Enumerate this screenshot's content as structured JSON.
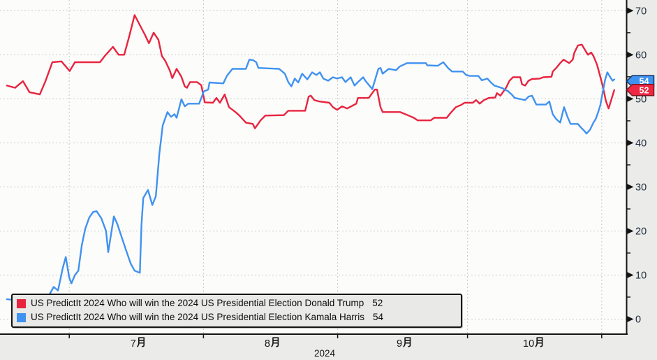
{
  "legend": {
    "rows": [
      {
        "label": "US PredictIt 2024 Who will win the 2024 US Presidential Election Donald Trump",
        "value": "52"
      },
      {
        "label": "US PredictIt 2024 Who will win the 2024 US Presidential Election Kamala Harris",
        "value": "54"
      }
    ]
  },
  "colors": {
    "trump_line": "#e8243f",
    "harris_line": "#4092f0",
    "gridline": "#c9c9c7",
    "axis": "#141414",
    "tick_label": "#1d2b3a",
    "plot_background": "#fcfcfb",
    "margin_background": "#ebebe9",
    "legend_background": "#e9e9e7"
  },
  "chart_data": {
    "type": "line",
    "title": "",
    "x_unit": "days_since_2024-06-15",
    "x_start_date": "2024-06-15",
    "x_ticks": [
      {
        "day": 16,
        "date": "2024-07-01"
      },
      {
        "day": 47,
        "date": "2024-08-01"
      },
      {
        "day": 78,
        "date": "2024-09-01"
      },
      {
        "day": 108,
        "date": "2024-10-01"
      },
      {
        "day": 139,
        "date": "2024-11-01"
      }
    ],
    "x_month_labels": [
      {
        "label": "7月",
        "center_day": 31.5
      },
      {
        "label": "8月",
        "center_day": 62.5
      },
      {
        "label": "9月",
        "center_day": 93
      },
      {
        "label": "10月",
        "center_day": 123.5
      }
    ],
    "year_label": "2024",
    "ylim": [
      0,
      70
    ],
    "y_major_ticks": [
      0,
      10,
      20,
      30,
      40,
      50,
      60,
      70
    ],
    "y_minor_ticks": [
      5,
      15,
      25,
      35,
      45,
      55,
      65
    ],
    "grid": true,
    "legend_position": "bottom-left",
    "series": [
      {
        "name": "Donald Trump",
        "slug": "trump",
        "color": "#e8243f",
        "badge_fill": "#ee2742",
        "badge_stroke": "#7d1524",
        "last_value": 52,
        "points": [
          [
            1.6,
            53
          ],
          [
            3.5,
            52.5
          ],
          [
            5.3,
            54
          ],
          [
            6.8,
            51.5
          ],
          [
            9.2,
            51
          ],
          [
            10.5,
            54
          ],
          [
            12.1,
            58.3
          ],
          [
            14.2,
            58.5
          ],
          [
            16.1,
            56.3
          ],
          [
            17.3,
            58.3
          ],
          [
            23.1,
            58.3
          ],
          [
            24.2,
            59.7
          ],
          [
            26.1,
            61.8
          ],
          [
            27.4,
            60
          ],
          [
            28.7,
            60
          ],
          [
            29.8,
            64
          ],
          [
            31.1,
            69
          ],
          [
            32.7,
            66
          ],
          [
            33.5,
            64.5
          ],
          [
            34.4,
            62.6
          ],
          [
            35.5,
            65
          ],
          [
            36.6,
            63.4
          ],
          [
            37.4,
            59.7
          ],
          [
            38.2,
            58.6
          ],
          [
            39.2,
            56.5
          ],
          [
            39.8,
            54.7
          ],
          [
            40.8,
            56.8
          ],
          [
            41.9,
            55
          ],
          [
            42.7,
            52.8
          ],
          [
            43.2,
            52.5
          ],
          [
            43.9,
            53.8
          ],
          [
            45.5,
            53.8
          ],
          [
            46.5,
            53.1
          ],
          [
            47.3,
            49.2
          ],
          [
            49.2,
            49.1
          ],
          [
            50,
            50.2
          ],
          [
            50.8,
            49.1
          ],
          [
            51.9,
            51
          ],
          [
            52.9,
            48.1
          ],
          [
            54.4,
            47
          ],
          [
            55.3,
            46.2
          ],
          [
            56.8,
            44.6
          ],
          [
            58.4,
            44.3
          ],
          [
            58.9,
            43.3
          ],
          [
            60.2,
            45.1
          ],
          [
            61.3,
            46.2
          ],
          [
            65.6,
            46.3
          ],
          [
            66.6,
            47.3
          ],
          [
            70.5,
            47.3
          ],
          [
            71.3,
            50.5
          ],
          [
            71.8,
            50.7
          ],
          [
            72.6,
            49.7
          ],
          [
            73.7,
            49.4
          ],
          [
            76.1,
            49.1
          ],
          [
            76.9,
            48.1
          ],
          [
            77.9,
            47.5
          ],
          [
            79,
            48.3
          ],
          [
            80.2,
            47.8
          ],
          [
            82.3,
            48.9
          ],
          [
            82.7,
            50.2
          ],
          [
            85.2,
            50.2
          ],
          [
            86.6,
            52.1
          ],
          [
            87.1,
            52.1
          ],
          [
            87.9,
            48.1
          ],
          [
            88.4,
            47
          ],
          [
            92.4,
            47
          ],
          [
            93.2,
            46.7
          ],
          [
            94.4,
            46.2
          ],
          [
            95.6,
            45.7
          ],
          [
            96.5,
            45.1
          ],
          [
            99.5,
            45.1
          ],
          [
            100.3,
            45.7
          ],
          [
            103.2,
            45.7
          ],
          [
            104,
            46.7
          ],
          [
            105.3,
            48.1
          ],
          [
            106.5,
            48.6
          ],
          [
            107.3,
            49.1
          ],
          [
            109.2,
            49.1
          ],
          [
            110,
            49.7
          ],
          [
            110.8,
            48.9
          ],
          [
            111.8,
            49.7
          ],
          [
            112.9,
            50.2
          ],
          [
            114.4,
            50.3
          ],
          [
            114.8,
            51.3
          ],
          [
            115.6,
            50.7
          ],
          [
            116.9,
            52.5
          ],
          [
            117.7,
            54.1
          ],
          [
            118.5,
            54.9
          ],
          [
            120.2,
            54.9
          ],
          [
            120.6,
            53.3
          ],
          [
            121.3,
            53
          ],
          [
            122.1,
            54.1
          ],
          [
            122.9,
            54.5
          ],
          [
            124.7,
            54.6
          ],
          [
            125.5,
            54.9
          ],
          [
            127.4,
            55
          ],
          [
            127.7,
            56.2
          ],
          [
            128.5,
            57
          ],
          [
            129.4,
            58.1
          ],
          [
            130.2,
            58.9
          ],
          [
            131,
            58.4
          ],
          [
            131.5,
            58.1
          ],
          [
            132.3,
            58.9
          ],
          [
            132.7,
            60.5
          ],
          [
            133.5,
            62.1
          ],
          [
            134.4,
            62.3
          ],
          [
            135.2,
            61
          ],
          [
            135.8,
            60
          ],
          [
            136.6,
            60.5
          ],
          [
            137.1,
            59.7
          ],
          [
            137.9,
            57.8
          ],
          [
            138.4,
            56
          ],
          [
            139,
            53.8
          ],
          [
            139.5,
            51.7
          ],
          [
            140,
            49.4
          ],
          [
            140.6,
            47.8
          ],
          [
            141.1,
            49.4
          ],
          [
            141.9,
            52
          ]
        ]
      },
      {
        "name": "Kamala Harris",
        "slug": "harris",
        "color": "#4092f0",
        "badge_fill": "#3d93f0",
        "badge_stroke": "#173064",
        "last_value": 54,
        "points": [
          [
            1.6,
            4.5
          ],
          [
            4.8,
            4.2
          ],
          [
            7.3,
            5
          ],
          [
            8.9,
            4.3
          ],
          [
            10.8,
            4.5
          ],
          [
            12.4,
            7.3
          ],
          [
            13.4,
            6.5
          ],
          [
            14.5,
            11.6
          ],
          [
            15.2,
            14.1
          ],
          [
            16,
            9.4
          ],
          [
            16.5,
            8.1
          ],
          [
            17.3,
            10
          ],
          [
            18.1,
            11
          ],
          [
            18.9,
            16.8
          ],
          [
            19.7,
            20.5
          ],
          [
            20.6,
            23
          ],
          [
            21.5,
            24.3
          ],
          [
            22.3,
            24.5
          ],
          [
            23.4,
            22.9
          ],
          [
            24.5,
            20
          ],
          [
            25,
            15.2
          ],
          [
            26.3,
            23.3
          ],
          [
            27.1,
            21.6
          ],
          [
            29,
            16
          ],
          [
            30.2,
            12.6
          ],
          [
            31.1,
            11
          ],
          [
            32.3,
            10.5
          ],
          [
            32.7,
            21.6
          ],
          [
            33.1,
            27.5
          ],
          [
            34.2,
            29.3
          ],
          [
            35.2,
            25.9
          ],
          [
            36,
            27.9
          ],
          [
            36.8,
            37.5
          ],
          [
            37.6,
            44
          ],
          [
            38.7,
            47
          ],
          [
            39.5,
            45.9
          ],
          [
            40.3,
            46.5
          ],
          [
            40.8,
            45.7
          ],
          [
            41.9,
            49.9
          ],
          [
            42.7,
            48.3
          ],
          [
            43.5,
            48.9
          ],
          [
            46,
            48.9
          ],
          [
            47.1,
            51.7
          ],
          [
            48.1,
            52.1
          ],
          [
            48.4,
            53.7
          ],
          [
            51.6,
            53.5
          ],
          [
            52.4,
            55.2
          ],
          [
            53.7,
            56.8
          ],
          [
            56.8,
            56.8
          ],
          [
            57.6,
            58.9
          ],
          [
            58.4,
            58.8
          ],
          [
            59.2,
            58.3
          ],
          [
            59.7,
            57
          ],
          [
            62.4,
            56.9
          ],
          [
            64.5,
            56.8
          ],
          [
            65.8,
            55.7
          ],
          [
            66.6,
            53.8
          ],
          [
            67.3,
            52.8
          ],
          [
            68.1,
            54.6
          ],
          [
            68.9,
            53.7
          ],
          [
            69.8,
            55.7
          ],
          [
            71,
            54.4
          ],
          [
            72.1,
            56
          ],
          [
            73.1,
            55.4
          ],
          [
            73.9,
            56
          ],
          [
            74.7,
            54.6
          ],
          [
            75.8,
            54.1
          ],
          [
            76.9,
            54.9
          ],
          [
            77.9,
            54.6
          ],
          [
            79,
            54.9
          ],
          [
            79.8,
            53.8
          ],
          [
            81,
            54.9
          ],
          [
            81.9,
            53
          ],
          [
            82.7,
            53.8
          ],
          [
            83.9,
            54.9
          ],
          [
            84.4,
            54.1
          ],
          [
            86,
            52.2
          ],
          [
            87.4,
            56.8
          ],
          [
            87.9,
            57
          ],
          [
            88.4,
            55.7
          ],
          [
            89.8,
            56.8
          ],
          [
            91.5,
            56.5
          ],
          [
            92.3,
            57.3
          ],
          [
            94,
            58.1
          ],
          [
            98.4,
            58.1
          ],
          [
            98.7,
            57.6
          ],
          [
            101.1,
            57.5
          ],
          [
            102.4,
            58.3
          ],
          [
            103.5,
            57
          ],
          [
            104.4,
            56.2
          ],
          [
            106.9,
            56.2
          ],
          [
            107.7,
            55.4
          ],
          [
            108.5,
            55.2
          ],
          [
            110.5,
            55.2
          ],
          [
            111.3,
            54.2
          ],
          [
            112.6,
            54.6
          ],
          [
            113.4,
            53.7
          ],
          [
            114.2,
            53
          ],
          [
            116.1,
            52.4
          ],
          [
            116.6,
            52.1
          ],
          [
            117.4,
            51.7
          ],
          [
            118.2,
            51
          ],
          [
            118.9,
            50.2
          ],
          [
            121.3,
            49.7
          ],
          [
            122.1,
            50.5
          ],
          [
            122.9,
            50.7
          ],
          [
            123.4,
            49.7
          ],
          [
            123.9,
            48.7
          ],
          [
            126.1,
            48.7
          ],
          [
            126.9,
            49.4
          ],
          [
            127.7,
            46.5
          ],
          [
            128.5,
            45.4
          ],
          [
            129.4,
            44.6
          ],
          [
            130.3,
            48.1
          ],
          [
            131.1,
            45.9
          ],
          [
            131.8,
            44.3
          ],
          [
            133.5,
            44.3
          ],
          [
            134.2,
            43.5
          ],
          [
            135,
            42.7
          ],
          [
            135.5,
            42.1
          ],
          [
            136.3,
            43
          ],
          [
            137.1,
            44.6
          ],
          [
            137.6,
            45.4
          ],
          [
            138.2,
            47
          ],
          [
            138.7,
            48.6
          ],
          [
            139.2,
            51.3
          ],
          [
            139.8,
            54.4
          ],
          [
            140.3,
            56
          ],
          [
            140.8,
            55.2
          ],
          [
            141.5,
            54.1
          ],
          [
            141.9,
            54.4
          ]
        ]
      }
    ]
  }
}
